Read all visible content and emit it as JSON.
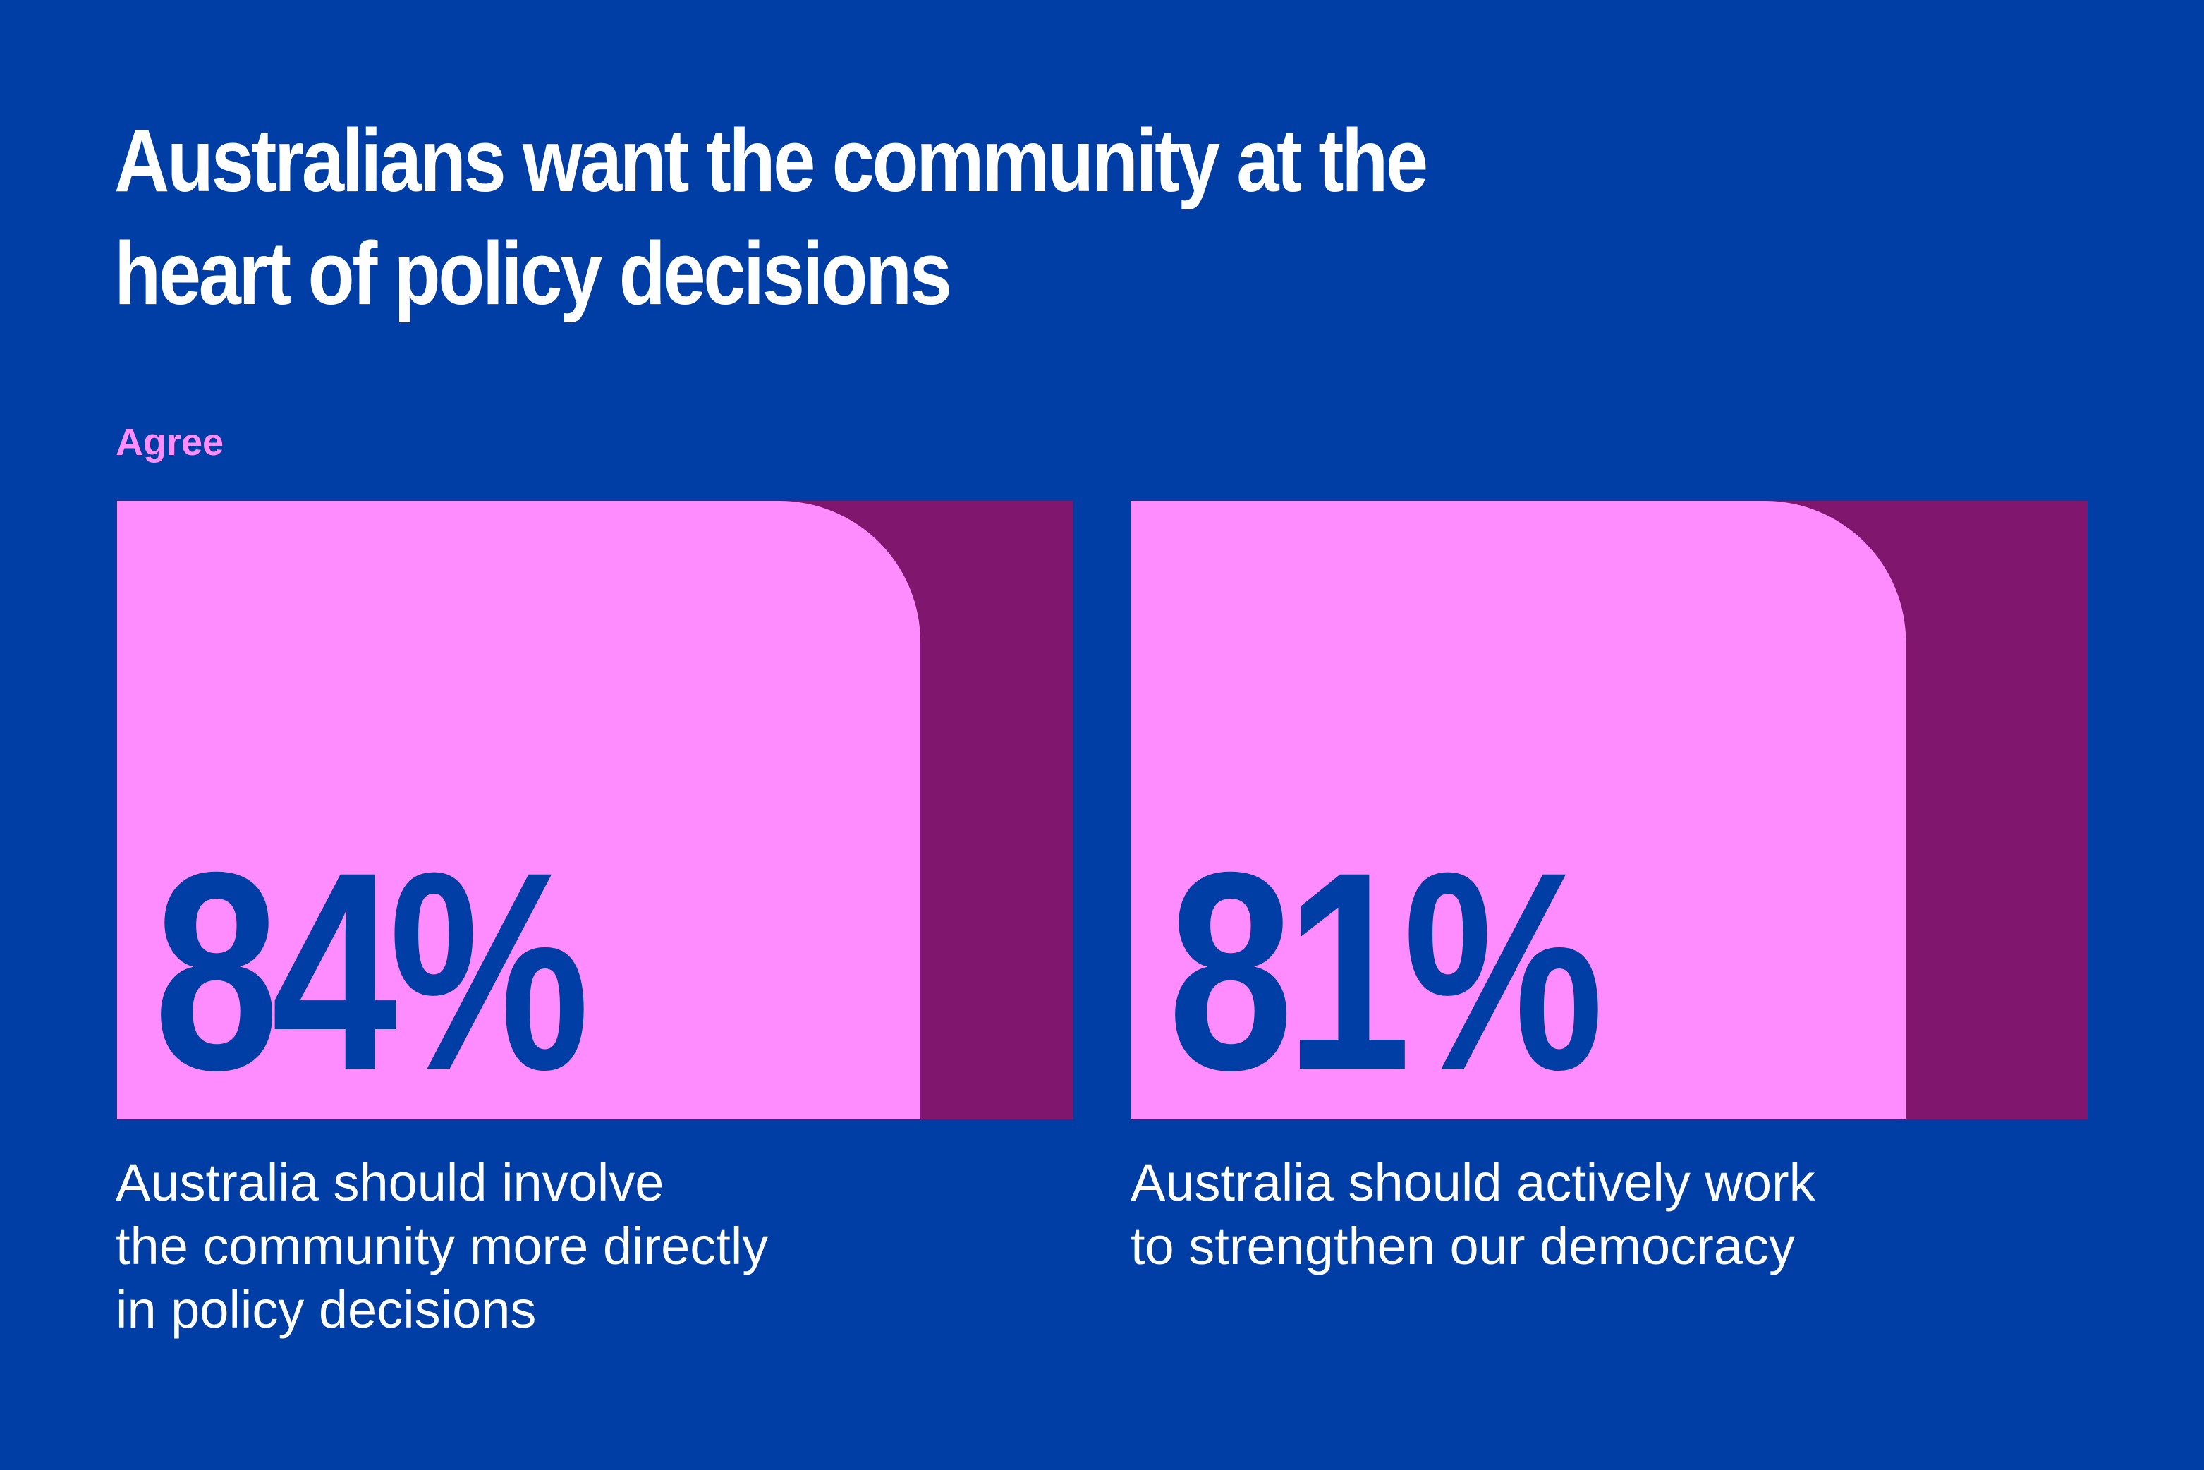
{
  "title": "Australians want the community at the heart of policy decisions",
  "legend_label": "Agree",
  "colors": {
    "background": "#003DA5",
    "agree_fill": "#FF8CFF",
    "remainder_fill": "#80166E",
    "percent_text": "#003DA5",
    "text": "#FFFFFF"
  },
  "chart_data": {
    "type": "bar",
    "title": "Australians want the community at the heart of policy decisions",
    "legend": [
      "Agree"
    ],
    "categories": [
      "Australia should involve the community more directly in policy decisions",
      "Australia should actively work to strengthen our democracy"
    ],
    "values": [
      84,
      81
    ],
    "value_labels": [
      "84%",
      "81%"
    ],
    "ylim": [
      0,
      100
    ]
  },
  "cards": [
    {
      "percent": "84%",
      "caption": "Australia should involve\nthe community more directly\nin policy decisions"
    },
    {
      "percent": "81%",
      "caption": "Australia should actively work\nto strengthen our democracy"
    }
  ]
}
